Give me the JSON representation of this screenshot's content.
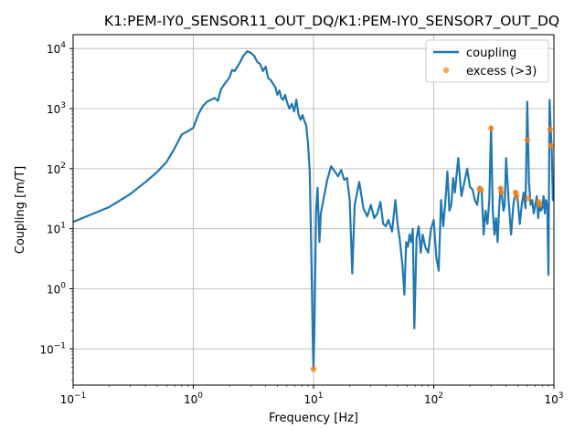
{
  "chart_data": {
    "type": "line",
    "title": "K1:PEM-IY0_SENSOR11_OUT_DQ/K1:PEM-IY0_SENSOR7_OUT_DQ",
    "xlabel": "Frequency [Hz]",
    "ylabel": "Coupling [m/T]",
    "xscale": "log",
    "yscale": "log",
    "xlim": [
      0.1,
      1000
    ],
    "ylim": [
      0.025,
      17000
    ],
    "grid": true,
    "legend_position": "upper-right",
    "x_ticks": [
      {
        "value": 0.1,
        "base": "10",
        "exp": "−1"
      },
      {
        "value": 1,
        "base": "10",
        "exp": "0"
      },
      {
        "value": 10,
        "base": "10",
        "exp": "1"
      },
      {
        "value": 100,
        "base": "10",
        "exp": "2"
      },
      {
        "value": 1000,
        "base": "10",
        "exp": "3"
      }
    ],
    "y_ticks": [
      {
        "value": 0.1,
        "base": "10",
        "exp": "−1"
      },
      {
        "value": 1,
        "base": "10",
        "exp": "0"
      },
      {
        "value": 10,
        "base": "10",
        "exp": "1"
      },
      {
        "value": 100,
        "base": "10",
        "exp": "2"
      },
      {
        "value": 1000,
        "base": "10",
        "exp": "3"
      },
      {
        "value": 10000,
        "base": "10",
        "exp": "4"
      }
    ],
    "series": [
      {
        "name": "coupling",
        "kind": "line",
        "color": "#1f77b4",
        "points": [
          [
            0.1,
            13
          ],
          [
            0.2,
            23
          ],
          [
            0.3,
            38
          ],
          [
            0.4,
            60
          ],
          [
            0.5,
            88
          ],
          [
            0.6,
            130
          ],
          [
            0.7,
            220
          ],
          [
            0.8,
            370
          ],
          [
            0.9,
            420
          ],
          [
            1.0,
            480
          ],
          [
            1.1,
            800
          ],
          [
            1.2,
            1100
          ],
          [
            1.3,
            1300
          ],
          [
            1.5,
            1500
          ],
          [
            1.6,
            1350
          ],
          [
            1.7,
            2100
          ],
          [
            1.8,
            2500
          ],
          [
            2.0,
            3300
          ],
          [
            2.1,
            4400
          ],
          [
            2.2,
            4200
          ],
          [
            2.4,
            5500
          ],
          [
            2.6,
            7500
          ],
          [
            2.8,
            9000
          ],
          [
            3.0,
            8500
          ],
          [
            3.2,
            7600
          ],
          [
            3.4,
            6000
          ],
          [
            3.6,
            5500
          ],
          [
            3.8,
            4200
          ],
          [
            4.0,
            5000
          ],
          [
            4.2,
            3200
          ],
          [
            4.4,
            3000
          ],
          [
            4.6,
            2600
          ],
          [
            4.8,
            2300
          ],
          [
            5.0,
            1700
          ],
          [
            5.2,
            2000
          ],
          [
            5.4,
            1500
          ],
          [
            5.6,
            1400
          ],
          [
            5.8,
            1700
          ],
          [
            6.0,
            1300
          ],
          [
            6.3,
            1000
          ],
          [
            6.6,
            1200
          ],
          [
            6.9,
            900
          ],
          [
            7.2,
            1400
          ],
          [
            7.5,
            800
          ],
          [
            7.8,
            650
          ],
          [
            8.1,
            780
          ],
          [
            8.4,
            620
          ],
          [
            8.7,
            520
          ],
          [
            9.0,
            260
          ],
          [
            9.3,
            90
          ],
          [
            9.6,
            3
          ],
          [
            9.9,
            0.09
          ],
          [
            10.0,
            0.046
          ],
          [
            10.2,
            0.3
          ],
          [
            10.5,
            20
          ],
          [
            10.8,
            48
          ],
          [
            11.2,
            6
          ],
          [
            11.5,
            18
          ],
          [
            12,
            28
          ],
          [
            13,
            65
          ],
          [
            14,
            110
          ],
          [
            15,
            90
          ],
          [
            16,
            75
          ],
          [
            17,
            95
          ],
          [
            18,
            65
          ],
          [
            19,
            70
          ],
          [
            20,
            30
          ],
          [
            21,
            1.8
          ],
          [
            22,
            25
          ],
          [
            24,
            60
          ],
          [
            26,
            22
          ],
          [
            28,
            16
          ],
          [
            30,
            25
          ],
          [
            32,
            15
          ],
          [
            34,
            18
          ],
          [
            36,
            28
          ],
          [
            38,
            12
          ],
          [
            40,
            11
          ],
          [
            42,
            14
          ],
          [
            45,
            9
          ],
          [
            48,
            30
          ],
          [
            50,
            12
          ],
          [
            52,
            7
          ],
          [
            55,
            2.4
          ],
          [
            57,
            0.8
          ],
          [
            59,
            6
          ],
          [
            61,
            5
          ],
          [
            63,
            8
          ],
          [
            65,
            6
          ],
          [
            67,
            10
          ],
          [
            69,
            0.22
          ],
          [
            72,
            7
          ],
          [
            75,
            11
          ],
          [
            78,
            4
          ],
          [
            81,
            8
          ],
          [
            85,
            5
          ],
          [
            90,
            4
          ],
          [
            95,
            10
          ],
          [
            100,
            14
          ],
          [
            105,
            3.4
          ],
          [
            110,
            2
          ],
          [
            115,
            30
          ],
          [
            120,
            11
          ],
          [
            125,
            28
          ],
          [
            130,
            90
          ],
          [
            135,
            20
          ],
          [
            140,
            25
          ],
          [
            145,
            70
          ],
          [
            150,
            40
          ],
          [
            160,
            150
          ],
          [
            170,
            35
          ],
          [
            180,
            60
          ],
          [
            190,
            100
          ],
          [
            200,
            50
          ],
          [
            210,
            45
          ],
          [
            220,
            30
          ],
          [
            230,
            25
          ],
          [
            240,
            50
          ],
          [
            250,
            48
          ],
          [
            260,
            8
          ],
          [
            270,
            20
          ],
          [
            280,
            12
          ],
          [
            290,
            30
          ],
          [
            300,
            500
          ],
          [
            310,
            20
          ],
          [
            320,
            8
          ],
          [
            330,
            15
          ],
          [
            340,
            6
          ],
          [
            350,
            22
          ],
          [
            360,
            48
          ],
          [
            370,
            35
          ],
          [
            380,
            20
          ],
          [
            390,
            25
          ],
          [
            400,
            150
          ],
          [
            420,
            30
          ],
          [
            440,
            8
          ],
          [
            460,
            25
          ],
          [
            480,
            42
          ],
          [
            500,
            30
          ],
          [
            520,
            12
          ],
          [
            540,
            25
          ],
          [
            560,
            40
          ],
          [
            580,
            22
          ],
          [
            600,
            1300
          ],
          [
            620,
            60
          ],
          [
            640,
            25
          ],
          [
            660,
            30
          ],
          [
            680,
            18
          ],
          [
            700,
            25
          ],
          [
            720,
            35
          ],
          [
            740,
            15
          ],
          [
            760,
            28
          ],
          [
            780,
            20
          ],
          [
            800,
            22
          ],
          [
            820,
            35
          ],
          [
            840,
            18
          ],
          [
            860,
            30
          ],
          [
            880,
            25
          ],
          [
            900,
            1.7
          ],
          [
            920,
            1400
          ],
          [
            940,
            450
          ],
          [
            960,
            200
          ],
          [
            980,
            30
          ],
          [
            1000,
            40
          ]
        ]
      },
      {
        "name": "excess (>3)",
        "kind": "scatter",
        "color": "#ff7f0e",
        "points": [
          [
            10.0,
            0.046
          ],
          [
            240,
            46
          ],
          [
            248,
            44
          ],
          [
            300,
            470
          ],
          [
            360,
            47
          ],
          [
            365,
            40
          ],
          [
            480,
            40
          ],
          [
            490,
            35
          ],
          [
            600,
            300
          ],
          [
            610,
            32
          ],
          [
            750,
            28
          ],
          [
            760,
            25
          ],
          [
            930,
            450
          ],
          [
            940,
            240
          ]
        ]
      }
    ]
  }
}
